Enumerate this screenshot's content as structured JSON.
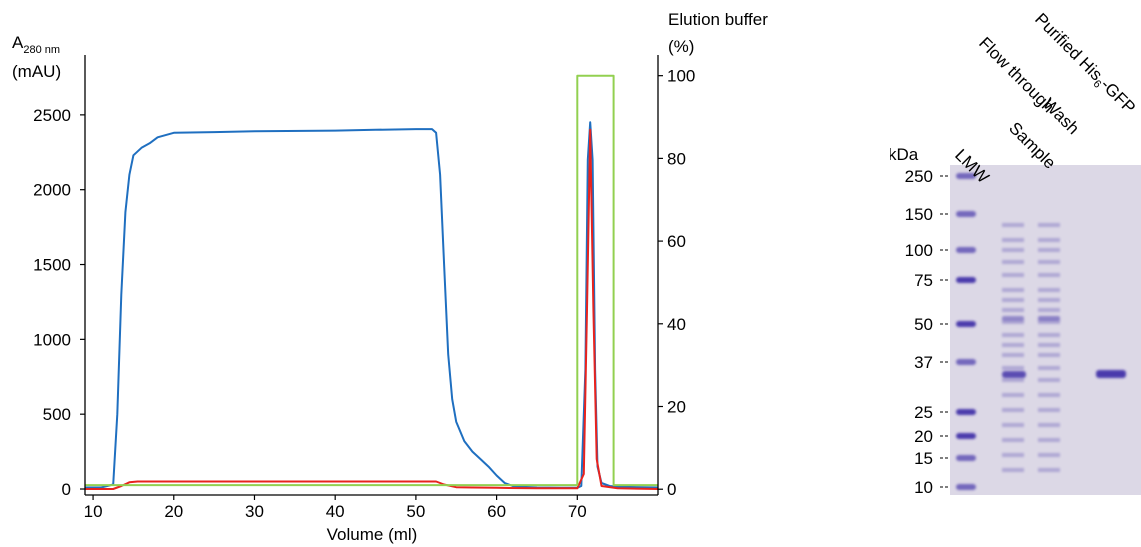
{
  "chart_data": [
    {
      "type": "line",
      "xlabel": "Volume (ml)",
      "ylabel": "A280 nm (mAU)",
      "ylabel_main": "A",
      "ylabel_sub": "280 nm",
      "ylabel_units": "(mAU)",
      "y2label_line1": "Elution buffer",
      "y2label_line2": "(%)",
      "xlim": [
        9,
        80
      ],
      "ylim": [
        -40,
        2900
      ],
      "y2lim": [
        -1.4,
        105
      ],
      "x_ticks": [
        10,
        20,
        30,
        40,
        50,
        60,
        70
      ],
      "y_ticks": [
        0,
        500,
        1000,
        1500,
        2000,
        2500
      ],
      "y2_ticks": [
        0,
        20,
        40,
        60,
        80,
        100
      ],
      "grid": false,
      "colors": {
        "a280": "#1f6fc0",
        "second": "#e8231e",
        "elution": "#92d050"
      },
      "series": [
        {
          "key": "a280",
          "axis": "left",
          "x": [
            9,
            11,
            12.5,
            13,
            13.5,
            14,
            14.5,
            15,
            16,
            17,
            18,
            20,
            25,
            30,
            40,
            45,
            50,
            52,
            52.5,
            53,
            53.5,
            54,
            54.5,
            55,
            56,
            57,
            58,
            59,
            60,
            61,
            62,
            63,
            65,
            68,
            70,
            70.5,
            71,
            71.3,
            71.6,
            71.9,
            72.2,
            72.5,
            73,
            74,
            75,
            80
          ],
          "y": [
            10,
            10,
            30,
            500,
            1300,
            1850,
            2100,
            2230,
            2280,
            2310,
            2350,
            2380,
            2385,
            2390,
            2395,
            2400,
            2405,
            2405,
            2380,
            2100,
            1500,
            900,
            600,
            450,
            320,
            250,
            200,
            150,
            90,
            40,
            20,
            15,
            10,
            8,
            8,
            20,
            800,
            2200,
            2450,
            2200,
            800,
            150,
            40,
            20,
            15,
            10
          ]
        },
        {
          "key": "second",
          "axis": "left",
          "x": [
            9,
            12.5,
            13.5,
            14.5,
            15.5,
            52.5,
            53.5,
            55,
            57,
            60,
            65,
            70,
            70.8,
            71.2,
            71.6,
            72.0,
            72.4,
            73,
            75,
            80
          ],
          "y": [
            0,
            0,
            20,
            45,
            50,
            50,
            30,
            12,
            10,
            8,
            5,
            5,
            100,
            1200,
            2400,
            1200,
            200,
            20,
            5,
            0
          ]
        },
        {
          "key": "elution",
          "axis": "right",
          "x": [
            9,
            70,
            70,
            74.5,
            74.5,
            80
          ],
          "y": [
            1,
            1,
            100,
            100,
            1,
            1
          ]
        }
      ]
    },
    {
      "type": "gel",
      "axis_unit": "kDa",
      "lane_labels": [
        "LMW",
        "Sample",
        "Flow through",
        "Wash",
        "Purified His-GFP"
      ],
      "purified_label_main": "Purified His",
      "purified_label_sub": "6",
      "purified_label_rest": "-GFP",
      "markers": [
        250,
        150,
        100,
        75,
        50,
        37,
        25,
        20,
        15,
        10
      ],
      "colors": {
        "gel_bg": "#dcd8e6",
        "band": "#3a2aa6"
      }
    }
  ]
}
